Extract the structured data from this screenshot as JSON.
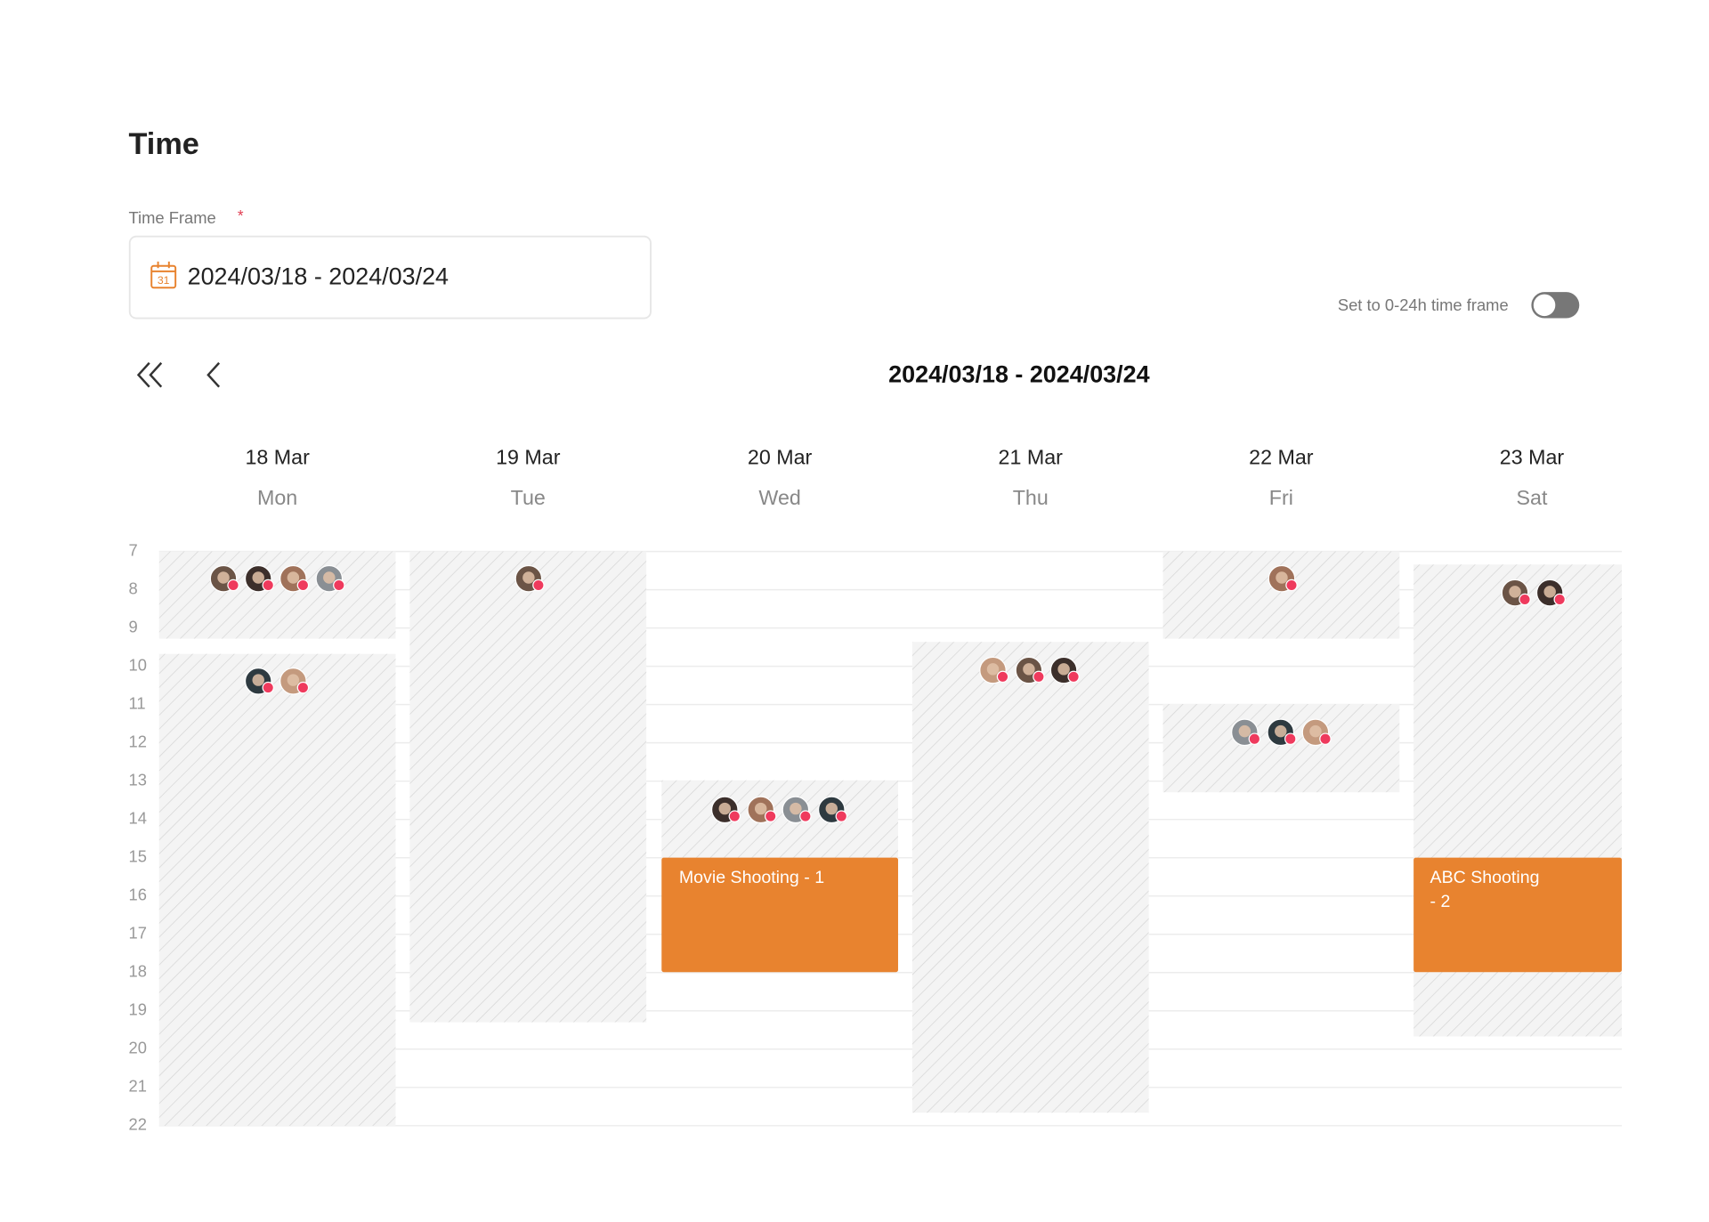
{
  "title": "Time",
  "time_frame": {
    "label": "Time Frame",
    "required_mark": "*",
    "icon_text": "31",
    "value": "2024/03/18 - 2024/03/24"
  },
  "toggle": {
    "label": "Set to 0-24h time frame"
  },
  "calendar": {
    "range": "2024/03/18 - 2024/03/24",
    "days": [
      {
        "date": "18 Mar",
        "weekday": "Mon"
      },
      {
        "date": "19 Mar",
        "weekday": "Tue"
      },
      {
        "date": "20 Mar",
        "weekday": "Wed"
      },
      {
        "date": "21 Mar",
        "weekday": "Thu"
      },
      {
        "date": "22 Mar",
        "weekday": "Fri"
      },
      {
        "date": "23 Mar",
        "weekday": "Sat"
      }
    ],
    "hours": [
      7,
      8,
      9,
      10,
      11,
      12,
      13,
      14,
      15,
      16,
      17,
      18,
      19,
      20,
      21,
      22
    ],
    "events": [
      {
        "lines": [
          "Movie Shooting - 1"
        ]
      },
      {
        "lines": [
          "ABC Shooting",
          "- 2"
        ]
      }
    ]
  }
}
